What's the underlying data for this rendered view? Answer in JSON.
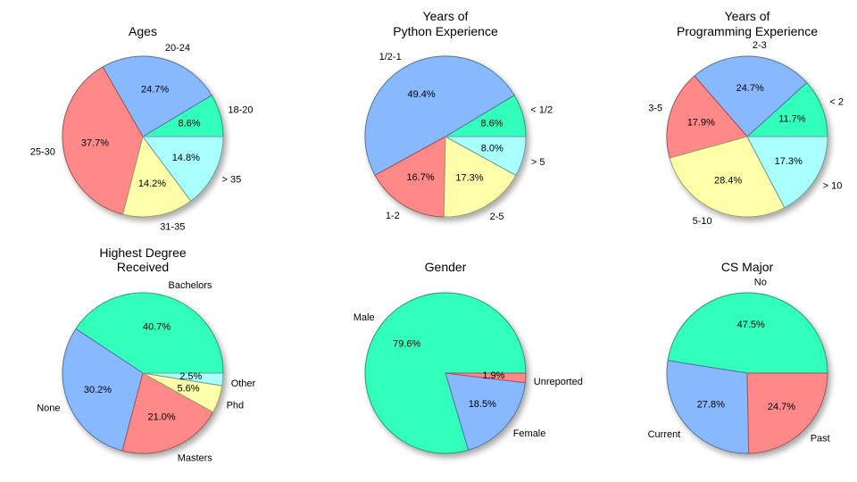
{
  "colors": {
    "teal": "#33ffbb",
    "blue": "#88b9ff",
    "red": "#ff8888",
    "yellow": "#ffffaa",
    "cyan": "#aaffff"
  },
  "chart_data": [
    {
      "type": "pie",
      "title": [
        "Ages"
      ],
      "slices": [
        {
          "label": "18-20",
          "value": 8.6,
          "pct": "8.6%",
          "color": "#33ffbb"
        },
        {
          "label": "20-24",
          "value": 24.7,
          "pct": "24.7%",
          "color": "#88b9ff"
        },
        {
          "label": "25-30",
          "value": 37.7,
          "pct": "37.7%",
          "color": "#ff8888"
        },
        {
          "label": "31-35",
          "value": 14.2,
          "pct": "14.2%",
          "color": "#ffffaa"
        },
        {
          "label": "> 35",
          "value": 14.8,
          "pct": "14.8%",
          "color": "#aaffff"
        }
      ]
    },
    {
      "type": "pie",
      "title": [
        "Years of",
        "Python Experience"
      ],
      "slices": [
        {
          "label": "< 1/2",
          "value": 8.6,
          "pct": "8.6%",
          "color": "#33ffbb"
        },
        {
          "label": "1/2-1",
          "value": 49.4,
          "pct": "49.4%",
          "color": "#88b9ff"
        },
        {
          "label": "1-2",
          "value": 16.7,
          "pct": "16.7%",
          "color": "#ff8888"
        },
        {
          "label": "2-5",
          "value": 17.3,
          "pct": "17.3%",
          "color": "#ffffaa"
        },
        {
          "label": "> 5",
          "value": 8.0,
          "pct": "8.0%",
          "color": "#aaffff"
        }
      ]
    },
    {
      "type": "pie",
      "title": [
        "Years of",
        "Programming Experience"
      ],
      "slices": [
        {
          "label": "< 2",
          "value": 11.7,
          "pct": "11.7%",
          "color": "#33ffbb"
        },
        {
          "label": "2-3",
          "value": 24.7,
          "pct": "24.7%",
          "color": "#88b9ff"
        },
        {
          "label": "3-5",
          "value": 17.9,
          "pct": "17.9%",
          "color": "#ff8888"
        },
        {
          "label": "5-10",
          "value": 28.4,
          "pct": "28.4%",
          "color": "#ffffaa"
        },
        {
          "label": "> 10",
          "value": 17.3,
          "pct": "17.3%",
          "color": "#aaffff"
        }
      ]
    },
    {
      "type": "pie",
      "title": [
        "Highest Degree",
        "Received"
      ],
      "slices": [
        {
          "label": "Bachelors",
          "value": 40.7,
          "pct": "40.7%",
          "color": "#33ffbb"
        },
        {
          "label": "None",
          "value": 30.2,
          "pct": "30.2%",
          "color": "#88b9ff"
        },
        {
          "label": "Masters",
          "value": 21.0,
          "pct": "21.0%",
          "color": "#ff8888"
        },
        {
          "label": "Phd",
          "value": 5.6,
          "pct": "5.6%",
          "color": "#ffffaa"
        },
        {
          "label": "Other",
          "value": 2.5,
          "pct": "2.5%",
          "color": "#aaffff"
        }
      ]
    },
    {
      "type": "pie",
      "title": [
        "Gender"
      ],
      "slices": [
        {
          "label": "Male",
          "value": 79.6,
          "pct": "79.6%",
          "color": "#33ffbb"
        },
        {
          "label": "Female",
          "value": 18.5,
          "pct": "18.5%",
          "color": "#88b9ff"
        },
        {
          "label": "Unreported",
          "value": 1.9,
          "pct": "1.9%",
          "color": "#ff8888"
        }
      ]
    },
    {
      "type": "pie",
      "title": [
        "CS Major"
      ],
      "slices": [
        {
          "label": "No",
          "value": 47.5,
          "pct": "47.5%",
          "color": "#33ffbb"
        },
        {
          "label": "Current",
          "value": 27.8,
          "pct": "27.8%",
          "color": "#88b9ff"
        },
        {
          "label": "Past",
          "value": 24.7,
          "pct": "24.7%",
          "color": "#ff8888"
        }
      ]
    }
  ]
}
